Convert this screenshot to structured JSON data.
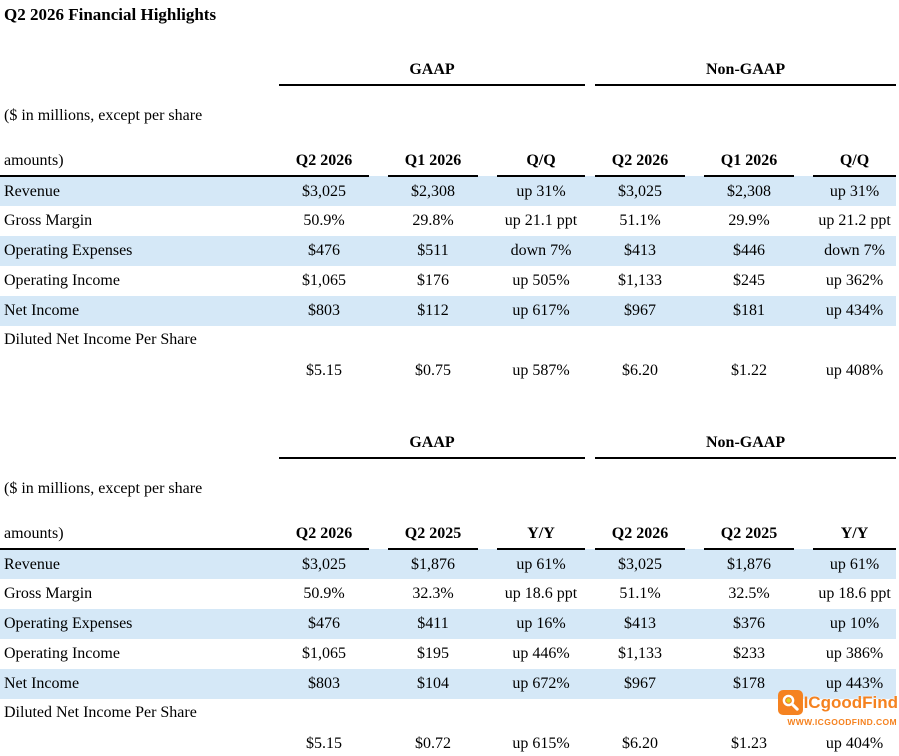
{
  "page": {
    "title": "Q2 2026 Financial Highlights"
  },
  "colors": {
    "row_stripe_blue": "#d5e8f7",
    "rule_black": "#000000",
    "watermark_orange": "#f58220"
  },
  "tables": [
    {
      "name": "quarter-over-quarter",
      "intro_line1": "($ in millions, except per share",
      "intro_line2": "amounts)",
      "groups": [
        "GAAP",
        "Non-GAAP"
      ],
      "columns": [
        "Q2 2026",
        "Q1 2026",
        "Q/Q",
        "Q2 2026",
        "Q1 2026",
        "Q/Q"
      ],
      "rows": [
        {
          "label": "Revenue",
          "striped": true,
          "two_line": false,
          "values": [
            "$3,025",
            "$2,308",
            "up 31%",
            "$3,025",
            "$2,308",
            "up 31%"
          ]
        },
        {
          "label": "Gross Margin",
          "striped": false,
          "two_line": false,
          "values": [
            "50.9%",
            "29.8%",
            "up 21.1 ppt",
            "51.1%",
            "29.9%",
            "up 21.2 ppt"
          ]
        },
        {
          "label": "Operating Expenses",
          "striped": true,
          "two_line": false,
          "values": [
            "$476",
            "$511",
            "down 7%",
            "$413",
            "$446",
            "down 7%"
          ]
        },
        {
          "label": "Operating Income",
          "striped": false,
          "two_line": false,
          "values": [
            "$1,065",
            "$176",
            "up 505%",
            "$1,133",
            "$245",
            "up 362%"
          ]
        },
        {
          "label": "Net Income",
          "striped": true,
          "two_line": false,
          "values": [
            "$803",
            "$112",
            "up 617%",
            "$967",
            "$181",
            "up 434%"
          ]
        },
        {
          "label": "Diluted Net Income Per Share",
          "striped": false,
          "two_line": true,
          "values": [
            "$5.15",
            "$0.75",
            "up 587%",
            "$6.20",
            "$1.22",
            "up 408%"
          ]
        }
      ]
    },
    {
      "name": "year-over-year",
      "intro_line1": "($ in millions, except per share",
      "intro_line2": "amounts)",
      "groups": [
        "GAAP",
        "Non-GAAP"
      ],
      "columns": [
        "Q2 2026",
        "Q2 2025",
        "Y/Y",
        "Q2 2026",
        "Q2 2025",
        "Y/Y"
      ],
      "rows": [
        {
          "label": "Revenue",
          "striped": true,
          "two_line": false,
          "values": [
            "$3,025",
            "$1,876",
            "up 61%",
            "$3,025",
            "$1,876",
            "up 61%"
          ]
        },
        {
          "label": "Gross Margin",
          "striped": false,
          "two_line": false,
          "values": [
            "50.9%",
            "32.3%",
            "up 18.6 ppt",
            "51.1%",
            "32.5%",
            "up 18.6 ppt"
          ]
        },
        {
          "label": "Operating Expenses",
          "striped": true,
          "two_line": false,
          "values": [
            "$476",
            "$411",
            "up 16%",
            "$413",
            "$376",
            "up 10%"
          ]
        },
        {
          "label": "Operating Income",
          "striped": false,
          "two_line": false,
          "values": [
            "$1,065",
            "$195",
            "up 446%",
            "$1,133",
            "$233",
            "up 386%"
          ]
        },
        {
          "label": "Net Income",
          "striped": true,
          "two_line": false,
          "values": [
            "$803",
            "$104",
            "up 672%",
            "$967",
            "$178",
            "up 443%"
          ]
        },
        {
          "label": "Diluted Net Income Per Share",
          "striped": false,
          "two_line": true,
          "values": [
            "$5.15",
            "$0.72",
            "up 615%",
            "$6.20",
            "$1.23",
            "up 404%"
          ]
        }
      ]
    }
  ],
  "watermark": {
    "brand": "ICgoodFind",
    "url": "WWW.ICGOODFIND.COM",
    "icon": "magnifier-icon"
  }
}
